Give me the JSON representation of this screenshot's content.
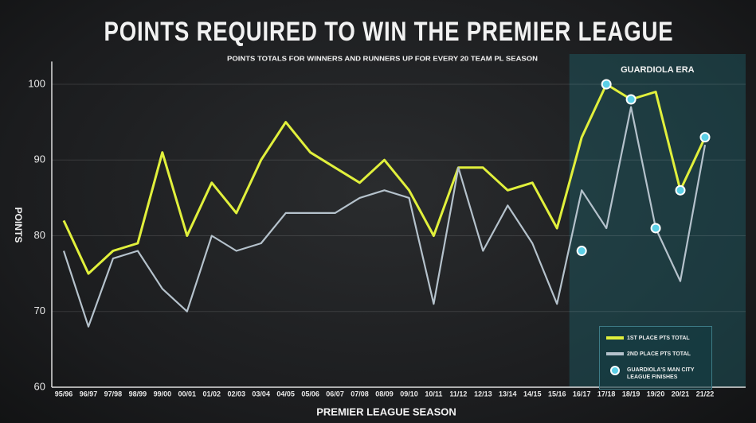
{
  "chart_data": {
    "type": "line",
    "title": "POINTS REQUIRED TO WIN THE PREMIER LEAGUE",
    "subtitle": "POINTS TOTALS FOR WINNERS AND RUNNERS UP FOR EVERY 20 TEAM PL SEASON",
    "annotation": "GUARDIOLA ERA",
    "x_label": "PREMIER LEAGUE SEASON",
    "y_label": "POINTS",
    "categories": [
      "95/96",
      "96/97",
      "97/98",
      "98/99",
      "99/00",
      "00/01",
      "01/02",
      "02/03",
      "03/04",
      "04/05",
      "05/06",
      "06/07",
      "07/08",
      "08/09",
      "09/10",
      "10/11",
      "11/12",
      "12/13",
      "13/14",
      "14/15",
      "15/16",
      "16/17",
      "17/18",
      "18/19",
      "19/20",
      "20/21",
      "21/22"
    ],
    "series": [
      {
        "name": "1ST PLACE PTS TOTAL",
        "color": "#e1f03c",
        "mode": "line",
        "values": [
          82,
          75,
          78,
          79,
          91,
          80,
          87,
          83,
          90,
          95,
          91,
          89,
          87,
          90,
          86,
          80,
          89,
          89,
          86,
          87,
          81,
          93,
          100,
          98,
          99,
          86,
          93
        ]
      },
      {
        "name": "2ND PLACE PTS TOTAL",
        "color": "#b5c2cc",
        "mode": "line",
        "values": [
          78,
          68,
          77,
          78,
          73,
          70,
          80,
          78,
          79,
          83,
          83,
          83,
          85,
          86,
          85,
          71,
          89,
          78,
          84,
          79,
          71,
          86,
          81,
          97,
          81,
          74,
          92
        ]
      },
      {
        "name": "GUARDIOLA'S MAN CITY LEAGUE FINISHES",
        "color": "#5ccfe6",
        "mode": "markers",
        "values": [
          null,
          null,
          null,
          null,
          null,
          null,
          null,
          null,
          null,
          null,
          null,
          null,
          null,
          null,
          null,
          null,
          null,
          null,
          null,
          null,
          null,
          78,
          100,
          98,
          81,
          86,
          93
        ]
      }
    ],
    "ylim": [
      60,
      103
    ],
    "yticks": [
      60,
      70,
      80,
      90,
      100
    ],
    "grid": true
  }
}
